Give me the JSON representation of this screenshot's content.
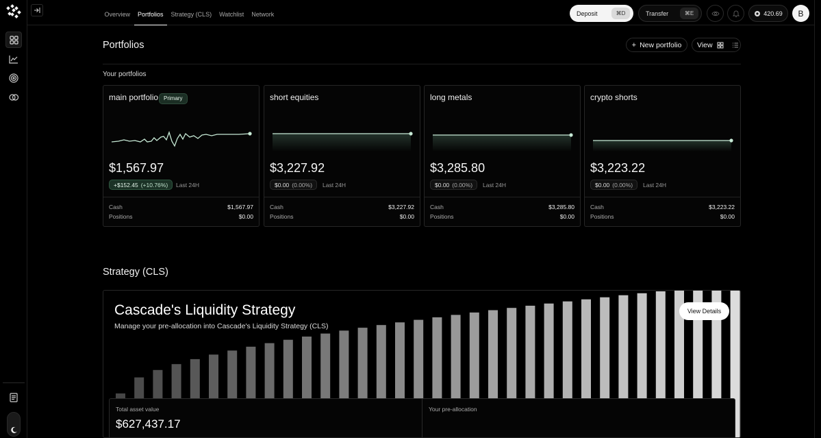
{
  "sidebar": {
    "items": [
      {
        "icon": "grid-icon",
        "active": true
      },
      {
        "icon": "chart-line-icon",
        "active": false
      },
      {
        "icon": "target-icon",
        "active": false
      },
      {
        "icon": "coins-icon",
        "active": false
      }
    ],
    "bottom_icon": "document-list-icon",
    "theme_icon": "moon-icon"
  },
  "topbar": {
    "tabs": [
      "Overview",
      "Portfolios",
      "Strategy (CLS)",
      "Watchlist",
      "Network"
    ],
    "active_tab": "Portfolios",
    "deposit_label": "Deposit",
    "deposit_shortcut": "⌘D",
    "transfer_label": "Transfer",
    "transfer_shortcut": "⌘E",
    "points": "420.69",
    "avatar_initial": "B"
  },
  "page": {
    "title": "Portfolios",
    "new_portfolio_label": "New portfolio",
    "view_label": "View",
    "section_label": "Your portfolios"
  },
  "portfolios": [
    {
      "name": "main portfolio",
      "badge": "Primary",
      "value": "$1,567.97",
      "change": "+$152.45",
      "change_pct": "(+10.76%)",
      "period": "Last 24H",
      "cash_label": "Cash",
      "cash": "$1,567.97",
      "positions_label": "Positions",
      "positions": "$0.00"
    },
    {
      "name": "short equities",
      "badge": "",
      "value": "$3,227.92",
      "change": "$0.00",
      "change_pct": "(0.00%)",
      "period": "Last 24H",
      "cash_label": "Cash",
      "cash": "$3,227.92",
      "positions_label": "Positions",
      "positions": "$0.00"
    },
    {
      "name": "long metals",
      "badge": "",
      "value": "$3,285.80",
      "change": "$0.00",
      "change_pct": "(0.00%)",
      "period": "Last 24H",
      "cash_label": "Cash",
      "cash": "$3,285.80",
      "positions_label": "Positions",
      "positions": "$0.00"
    },
    {
      "name": "crypto shorts",
      "badge": "",
      "value": "$3,223.22",
      "change": "$0.00",
      "change_pct": "(0.00%)",
      "period": "Last 24H",
      "cash_label": "Cash",
      "cash": "$3,223.22",
      "positions_label": "Positions",
      "positions": "$0.00"
    }
  ],
  "strategy": {
    "section_title": "Strategy (CLS)",
    "name": "Cascade's Liquidity Strategy",
    "subtitle": "Manage your pre-allocation into Cascade's Liquidity Strategy (CLS)",
    "view_details_label": "View Details",
    "total_label": "Total asset value",
    "total_value": "$627,437.17",
    "preallocation_label": "Your pre-allocation"
  },
  "colors": {
    "accent_green": "#8fd4b0",
    "badge_green": "#1b2e24"
  }
}
